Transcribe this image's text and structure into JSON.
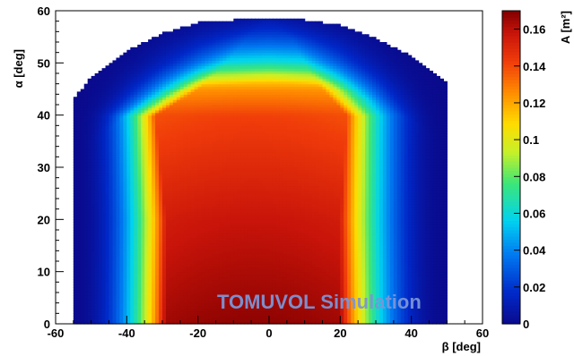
{
  "chart_data": {
    "type": "heatmap",
    "xlabel": "β [deg]",
    "ylabel": "α [deg]",
    "zlabel": "A [m²]",
    "xlim": [
      -60,
      60
    ],
    "ylim": [
      0,
      60
    ],
    "zlim": [
      0,
      0.17
    ],
    "x_ticks": [
      "-60",
      "-40",
      "-20",
      "0",
      "20",
      "40",
      "60"
    ],
    "y_ticks": [
      "0",
      "10",
      "20",
      "30",
      "40",
      "50",
      "60"
    ],
    "z_ticks": [
      "0",
      "0.02",
      "0.04",
      "0.06",
      "0.08",
      "0.1",
      "0.12",
      "0.14",
      "0.16"
    ],
    "colormap": "rainbow (dark blue → cyan → green → yellow → orange → red → dark red)",
    "beta_range": [
      -55,
      50
    ],
    "alpha_edge": [
      {
        "beta": -55,
        "alpha": 43
      },
      {
        "beta": -50,
        "alpha": 47
      },
      {
        "beta": -40,
        "alpha": 52
      },
      {
        "beta": -30,
        "alpha": 55.5
      },
      {
        "beta": -20,
        "alpha": 57.5
      },
      {
        "beta": -10,
        "alpha": 58
      },
      {
        "beta": 0,
        "alpha": 58.5
      },
      {
        "beta": 10,
        "alpha": 58
      },
      {
        "beta": 20,
        "alpha": 57
      },
      {
        "beta": 30,
        "alpha": 54.5
      },
      {
        "beta": 40,
        "alpha": 51
      },
      {
        "beta": 50,
        "alpha": 46
      }
    ],
    "profile": [
      {
        "alpha": 0,
        "peak": 0.168,
        "edge_left": -29,
        "edge_right": 20,
        "width": 5
      },
      {
        "alpha": 20,
        "peak": 0.158,
        "edge_left": -29,
        "edge_right": 20,
        "width": 5
      },
      {
        "alpha": 40,
        "peak": 0.142,
        "edge_left": -32,
        "edge_right": 22,
        "width": 5
      },
      {
        "alpha": 45,
        "peak": 0.125,
        "edge_left": -20,
        "edge_right": 15,
        "width": 7
      },
      {
        "alpha": 50,
        "peak": 0.085,
        "edge_left": -12,
        "edge_right": 10,
        "width": 9
      },
      {
        "alpha": 55,
        "peak": 0.06,
        "edge_left": -6,
        "edge_right": 6,
        "width": 10
      },
      {
        "alpha": 58.5,
        "peak": 0.045,
        "edge_left": 0,
        "edge_right": 0,
        "width": 12
      }
    ]
  },
  "watermark": "TOMUVOL Simulation"
}
